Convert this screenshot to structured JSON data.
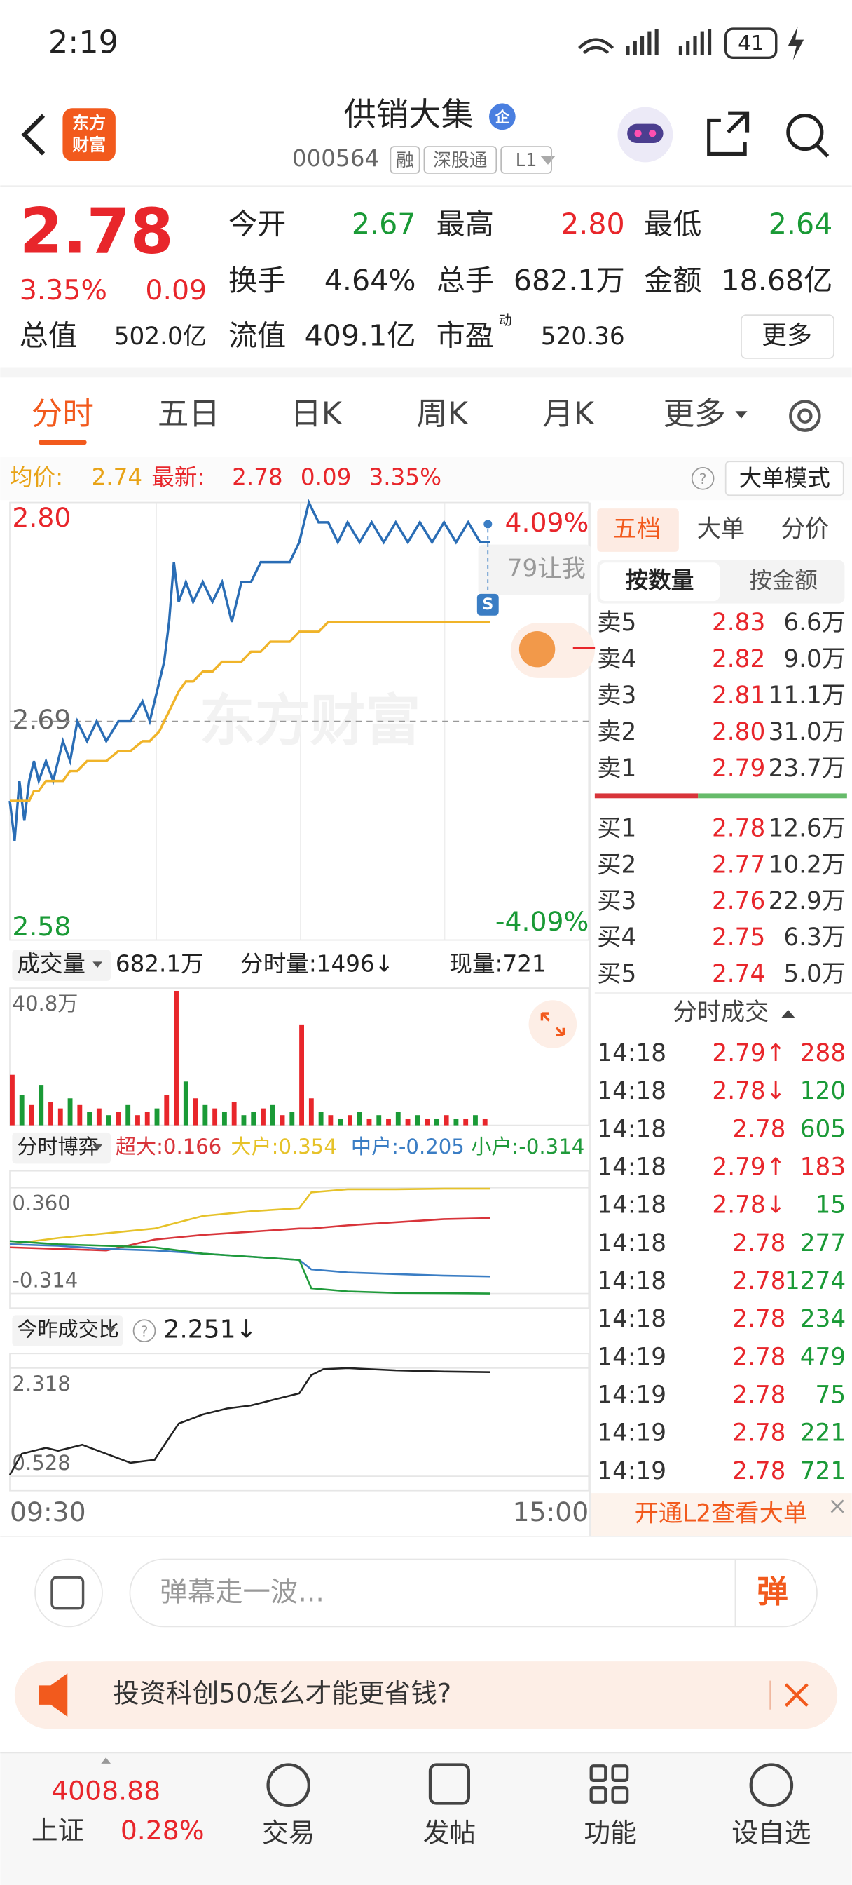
{
  "status": {
    "time": "2:19",
    "battery": "41"
  },
  "header": {
    "logo": [
      "东方",
      "财富"
    ],
    "name": "供销大集",
    "badge": "企",
    "code": "000564",
    "tags": [
      "融",
      "深股通",
      "L1"
    ]
  },
  "quote": {
    "price": "2.78",
    "change_pct": "3.35%",
    "change": "0.09",
    "stats": [
      {
        "label": "今开",
        "value": "2.67"
      },
      {
        "label": "最高",
        "value": "2.80"
      },
      {
        "label": "最低",
        "value": "2.64"
      },
      {
        "label": "换手",
        "value": "4.64%"
      },
      {
        "label": "总手",
        "value": "682.1万"
      },
      {
        "label": "金额",
        "value": "18.68亿"
      },
      {
        "label": "总值",
        "value": "502.0亿"
      },
      {
        "label": "流值",
        "value": "409.1亿"
      },
      {
        "label": "市盈",
        "sup": "动",
        "value": "520.36"
      }
    ],
    "more": "更多"
  },
  "tabs": [
    "分时",
    "五日",
    "日K",
    "周K",
    "月K",
    "更多"
  ],
  "summary": {
    "avg_label": "均价:",
    "avg": "2.74",
    "last_label": "最新:",
    "last": "2.78",
    "change": "0.09",
    "change_pct": "3.35%",
    "help": "?",
    "mode": "大单模式"
  },
  "overlay": {
    "watermark": "东方财富",
    "bubble": "79让我",
    "badge": "S",
    "peek": "一"
  },
  "chart_data": [
    {
      "type": "line",
      "x": [
        0,
        2,
        4,
        6,
        8,
        10,
        12,
        15,
        18,
        22,
        25,
        28,
        32,
        36,
        40,
        45,
        50,
        55,
        58,
        62,
        64,
        66,
        68,
        70,
        73,
        76,
        80,
        84,
        88,
        92,
        96,
        100,
        104,
        108,
        112,
        116,
        120,
        124,
        128,
        132,
        136,
        140,
        145,
        150,
        155,
        160,
        165,
        170,
        175,
        180,
        185,
        190,
        195,
        199
      ],
      "xlim": [
        0,
        240
      ],
      "xticks": [
        {
          "value": 0,
          "label": "09:30"
        },
        {
          "value": 240,
          "label": "15:00"
        }
      ],
      "ylim": [
        2.58,
        2.8
      ],
      "yticks": [
        {
          "value": 2.8,
          "label": "2.80"
        },
        2.69,
        2.58
      ],
      "y2lim": [
        -4.09,
        4.09
      ],
      "y2ticks": [
        {
          "value": 4.09,
          "label": "4.09%"
        },
        {
          "value": -4.09,
          "label": "-4.09%"
        }
      ],
      "series": [
        {
          "color": "#2a6db5",
          "values": [
            2.65,
            2.63,
            2.66,
            2.64,
            2.66,
            2.67,
            2.66,
            2.67,
            2.66,
            2.68,
            2.67,
            2.69,
            2.68,
            2.69,
            2.68,
            2.69,
            2.69,
            2.7,
            2.69,
            2.71,
            2.72,
            2.74,
            2.77,
            2.75,
            2.76,
            2.75,
            2.76,
            2.75,
            2.76,
            2.74,
            2.76,
            2.76,
            2.77,
            2.77,
            2.77,
            2.77,
            2.78,
            2.8,
            2.79,
            2.79,
            2.78,
            2.79,
            2.78,
            2.79,
            2.78,
            2.79,
            2.78,
            2.79,
            2.78,
            2.79,
            2.78,
            2.79,
            2.78,
            2.78
          ]
        },
        {
          "color": "#f0b429",
          "values": [
            2.65,
            2.65,
            2.65,
            2.65,
            2.65,
            2.655,
            2.655,
            2.66,
            2.66,
            2.66,
            2.665,
            2.665,
            2.67,
            2.67,
            2.67,
            2.675,
            2.675,
            2.68,
            2.68,
            2.685,
            2.69,
            2.695,
            2.7,
            2.705,
            2.71,
            2.71,
            2.715,
            2.715,
            2.72,
            2.72,
            2.72,
            2.725,
            2.725,
            2.73,
            2.73,
            2.73,
            2.735,
            2.735,
            2.735,
            2.74,
            2.74,
            2.74,
            2.74,
            2.74,
            2.74,
            2.74,
            2.74,
            2.74,
            2.74,
            2.74,
            2.74,
            2.74,
            2.74,
            2.74
          ]
        }
      ]
    },
    {
      "type": "bar",
      "label": "成交量",
      "total": "682.1万",
      "minute_label": "分时量:1496↓",
      "current_label": "现量:721",
      "x": [
        0,
        4,
        8,
        12,
        16,
        20,
        24,
        28,
        32,
        36,
        40,
        44,
        48,
        52,
        56,
        60,
        64,
        68,
        72,
        76,
        80,
        84,
        88,
        92,
        96,
        100,
        104,
        108,
        112,
        116,
        120,
        124,
        128,
        132,
        136,
        140,
        144,
        148,
        152,
        156,
        160,
        164,
        168,
        172,
        176,
        180,
        184,
        188,
        192,
        196
      ],
      "xlim": [
        0,
        240
      ],
      "ylim": [
        0,
        408000
      ],
      "yticks": [
        {
          "value": 408000,
          "label": "40.8万"
        }
      ],
      "values": [
        150000,
        90000,
        60000,
        120000,
        70000,
        50000,
        80000,
        60000,
        40000,
        50000,
        30000,
        40000,
        60000,
        30000,
        40000,
        50000,
        90000,
        400000,
        130000,
        80000,
        60000,
        50000,
        40000,
        70000,
        30000,
        40000,
        50000,
        60000,
        30000,
        40000,
        300000,
        80000,
        40000,
        30000,
        20000,
        30000,
        40000,
        20000,
        30000,
        20000,
        40000,
        20000,
        30000,
        20000,
        20000,
        30000,
        20000,
        20000,
        30000,
        20000
      ],
      "colors": [
        "#e8262b",
        "#1a9a36",
        "#e8262b",
        "#1a9a36",
        "#e8262b",
        "#e8262b",
        "#1a9a36",
        "#e8262b",
        "#1a9a36",
        "#e8262b",
        "#1a9a36",
        "#e8262b",
        "#1a9a36",
        "#e8262b",
        "#e8262b",
        "#1a9a36",
        "#e8262b",
        "#e8262b",
        "#1a9a36",
        "#e8262b",
        "#1a9a36",
        "#e8262b",
        "#1a9a36",
        "#e8262b",
        "#1a9a36",
        "#1a9a36",
        "#e8262b",
        "#1a9a36",
        "#e8262b",
        "#1a9a36",
        "#e8262b",
        "#e8262b",
        "#1a9a36",
        "#e8262b",
        "#1a9a36",
        "#e8262b",
        "#1a9a36",
        "#e8262b",
        "#1a9a36",
        "#e8262b",
        "#1a9a36",
        "#e8262b",
        "#1a9a36",
        "#e8262b",
        "#1a9a36",
        "#e8262b",
        "#1a9a36",
        "#e8262b",
        "#1a9a36",
        "#e8262b"
      ]
    },
    {
      "type": "line",
      "label": "分时博弈",
      "x": [
        0,
        20,
        40,
        60,
        80,
        100,
        120,
        125,
        140,
        160,
        180,
        199
      ],
      "xlim": [
        0,
        240
      ],
      "ylim": [
        -0.314,
        0.36
      ],
      "yticks": [
        {
          "value": 0.36,
          "label": "0.360"
        },
        -0.314
      ],
      "series": [
        {
          "name": "超大:0.166",
          "color": "#d8343a",
          "values": [
            -0.02,
            -0.03,
            -0.04,
            0.03,
            0.06,
            0.08,
            0.1,
            0.1,
            0.12,
            0.14,
            0.16,
            0.166
          ]
        },
        {
          "name": "大户:0.354",
          "color": "#e6c229",
          "values": [
            0.0,
            0.04,
            0.07,
            0.1,
            0.18,
            0.21,
            0.23,
            0.33,
            0.35,
            0.35,
            0.354,
            0.354
          ]
        },
        {
          "name": "中户:-0.205",
          "color": "#3a7dc4",
          "values": [
            0.0,
            -0.01,
            -0.03,
            -0.04,
            -0.06,
            -0.08,
            -0.1,
            -0.16,
            -0.18,
            -0.19,
            -0.2,
            -0.205
          ]
        },
        {
          "name": "小户:-0.314",
          "color": "#1f9a3a",
          "values": [
            0.02,
            0.0,
            -0.01,
            -0.02,
            -0.06,
            -0.08,
            -0.1,
            -0.28,
            -0.3,
            -0.31,
            -0.312,
            -0.314
          ]
        }
      ]
    },
    {
      "type": "line",
      "label": "今昨成交比",
      "help": "?",
      "current": "2.251↓",
      "x": [
        0,
        5,
        10,
        15,
        20,
        30,
        40,
        50,
        60,
        65,
        70,
        80,
        90,
        100,
        110,
        120,
        125,
        130,
        140,
        160,
        180,
        199
      ],
      "xlim": [
        0,
        240
      ],
      "ylim": [
        0.528,
        2.318
      ],
      "yticks": [
        2.318,
        0.528
      ],
      "series": [
        {
          "color": "#222222",
          "values": [
            0.55,
            0.9,
            0.95,
            1.0,
            0.95,
            1.05,
            0.9,
            0.75,
            0.8,
            1.1,
            1.4,
            1.55,
            1.65,
            1.7,
            1.8,
            1.9,
            2.2,
            2.3,
            2.318,
            2.28,
            2.26,
            2.251
          ]
        }
      ]
    }
  ],
  "panel": {
    "tabs": [
      "五档",
      "大单",
      "分价"
    ],
    "toggle": [
      "按数量",
      "按金额"
    ],
    "sells": [
      {
        "label": "卖5",
        "price": "2.83",
        "volume": "6.6万"
      },
      {
        "label": "卖4",
        "price": "2.82",
        "volume": "9.0万"
      },
      {
        "label": "卖3",
        "price": "2.81",
        "volume": "11.1万"
      },
      {
        "label": "卖2",
        "price": "2.80",
        "volume": "31.0万"
      },
      {
        "label": "卖1",
        "price": "2.79",
        "volume": "23.7万"
      }
    ],
    "buys": [
      {
        "label": "买1",
        "price": "2.78",
        "volume": "12.6万"
      },
      {
        "label": "买2",
        "price": "2.77",
        "volume": "10.2万"
      },
      {
        "label": "买3",
        "price": "2.76",
        "volume": "22.9万"
      },
      {
        "label": "买4",
        "price": "2.75",
        "volume": "6.3万"
      },
      {
        "label": "买5",
        "price": "2.74",
        "volume": "5.0万"
      }
    ],
    "trades_title": "分时成交",
    "trades": [
      {
        "time": "14:18",
        "price": "2.79↑",
        "volume": "288",
        "color": "#e8262b"
      },
      {
        "time": "14:18",
        "price": "2.78↓",
        "volume": "120",
        "color": "#1a9a36"
      },
      {
        "time": "14:18",
        "price": "2.78",
        "volume": "605",
        "color": "#1a9a36"
      },
      {
        "time": "14:18",
        "price": "2.79↑",
        "volume": "183",
        "color": "#e8262b"
      },
      {
        "time": "14:18",
        "price": "2.78↓",
        "volume": "15",
        "color": "#1a9a36"
      },
      {
        "time": "14:18",
        "price": "2.78",
        "volume": "277",
        "color": "#1a9a36"
      },
      {
        "time": "14:18",
        "price": "2.78",
        "volume": "1274",
        "color": "#1a9a36"
      },
      {
        "time": "14:18",
        "price": "2.78",
        "volume": "234",
        "color": "#1a9a36"
      },
      {
        "time": "14:19",
        "price": "2.78",
        "volume": "479",
        "color": "#1a9a36"
      },
      {
        "time": "14:19",
        "price": "2.78",
        "volume": "75",
        "color": "#1a9a36"
      },
      {
        "time": "14:19",
        "price": "2.78",
        "volume": "221",
        "color": "#1a9a36"
      },
      {
        "time": "14:19",
        "price": "2.78",
        "volume": "721",
        "color": "#1a9a36"
      }
    ],
    "l2": "开通L2查看大单"
  },
  "comment": {
    "placeholder": "弹幕走一波...",
    "button": "弹"
  },
  "banner": {
    "text": "投资科创50怎么才能更省钱?"
  },
  "nav": {
    "index_value": "4008.88",
    "index_name": "上证",
    "index_change": "0.28%",
    "items": [
      "交易",
      "发帖",
      "功能",
      "设自选"
    ]
  }
}
